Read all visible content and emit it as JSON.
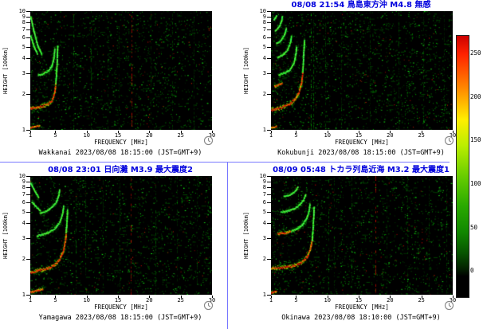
{
  "colors": {
    "title_blue": "#0000dd",
    "divider_blue": "#7777ff",
    "plot_background": "#000000",
    "caption_black": "#000000"
  },
  "chart_data": {
    "type": "heatmap",
    "description": "2x2 grid of ionogram quick-look plots (ionosonde echo intensity vs frequency and virtual height) from four Japanese stations, with earthquake annotations and a signal-intensity colorbar",
    "xlabel": "FREQUENCY [MHz]",
    "ylabel": "HEIGHT [100km]",
    "x_range": [
      1,
      30
    ],
    "y_scale": "log",
    "x_ticks": [
      1,
      5,
      10,
      15,
      20,
      25,
      30
    ],
    "y_ticks": [
      10,
      9,
      8,
      7,
      6,
      5,
      4,
      3,
      2,
      1
    ],
    "colorbar": {
      "ticks": [
        250,
        200,
        150,
        100,
        50,
        0
      ],
      "gradient": [
        [
          "#cc0000",
          0
        ],
        [
          "#ff2200",
          7
        ],
        [
          "#ff8800",
          20
        ],
        [
          "#ffee00",
          32
        ],
        [
          "#bbee00",
          42
        ],
        [
          "#66cc00",
          54
        ],
        [
          "#2aaa00",
          65
        ],
        [
          "#118800",
          75
        ],
        [
          "#075500",
          83
        ],
        [
          "#032200",
          89
        ],
        [
          "#000000",
          92
        ],
        [
          "#000000",
          100
        ]
      ]
    },
    "panels": [
      {
        "station": "Wakkanai",
        "title": "",
        "caption": "Wakkanai 2023/08/08 18:15:00 (JST=GMT+9)",
        "noise": {
          "seed": 7,
          "count": 1500
        },
        "vlines": [
          {
            "f": 17.2,
            "color": "red",
            "alpha": 0.9
          },
          {
            "f": 7.9,
            "color": "green",
            "alpha": 0.4
          },
          {
            "f": 10.7,
            "color": "green",
            "alpha": 0.5
          },
          {
            "f": 13.4,
            "color": "green",
            "alpha": 0.3
          },
          {
            "f": 15.1,
            "color": "green",
            "alpha": 0.25
          },
          {
            "f": 20.2,
            "color": "green",
            "alpha": 0.3
          },
          {
            "f": 23.6,
            "color": "green",
            "alpha": 0.45
          },
          {
            "f": 27.1,
            "color": "green",
            "alpha": 0.3
          }
        ],
        "traces": [
          {
            "hot": true,
            "w": 4,
            "pts": [
              [
                1,
                1.52
              ],
              [
                2,
                1.56
              ],
              [
                3,
                1.6
              ],
              [
                3.8,
                1.66
              ],
              [
                4.4,
                1.78
              ],
              [
                4.8,
                2.05
              ],
              [
                5.0,
                2.5
              ]
            ]
          },
          {
            "hot": false,
            "w": 2.4,
            "pts": [
              [
                5.0,
                2.5
              ],
              [
                5.15,
                3.3
              ],
              [
                5.25,
                4.3
              ],
              [
                5.3,
                5.2
              ]
            ]
          },
          {
            "hot": false,
            "w": 2.4,
            "pts": [
              [
                2.2,
                2.9
              ],
              [
                3.0,
                3.0
              ],
              [
                3.8,
                3.15
              ],
              [
                4.4,
                3.5
              ],
              [
                4.7,
                4.1
              ],
              [
                4.85,
                4.9
              ]
            ]
          },
          {
            "hot": false,
            "w": 2.0,
            "pts": [
              [
                1.0,
                9.0
              ],
              [
                1.5,
                6.8
              ],
              [
                2.1,
                5.2
              ],
              [
                2.8,
                4.3
              ]
            ]
          },
          {
            "hot": false,
            "w": 1.7,
            "pts": [
              [
                1.0,
                6.2
              ],
              [
                1.5,
                5.1
              ],
              [
                2.1,
                4.35
              ]
            ]
          },
          {
            "hot": true,
            "w": 2.2,
            "pts": [
              [
                1,
                1.05
              ],
              [
                1.8,
                1.07
              ],
              [
                2.5,
                1.1
              ]
            ]
          }
        ]
      },
      {
        "station": "Kokubunji",
        "title": "08/08 21:54 鳥島東方沖 M4.8 無感",
        "caption": "Kokubunji 2023/08/08 18:15:00 (JST=GMT+9)",
        "noise": {
          "seed": 21,
          "count": 1700
        },
        "vlines": [
          {
            "f": 7.3,
            "color": "green",
            "alpha": 0.7
          },
          {
            "f": 7.8,
            "color": "green",
            "alpha": 0.5
          },
          {
            "f": 9.6,
            "color": "green",
            "alpha": 0.35
          },
          {
            "f": 12.2,
            "color": "green",
            "alpha": 0.3
          },
          {
            "f": 16.8,
            "color": "green",
            "alpha": 0.3
          },
          {
            "f": 21.4,
            "color": "green",
            "alpha": 0.35
          },
          {
            "f": 25.3,
            "color": "green",
            "alpha": 0.3
          },
          {
            "f": 28.6,
            "color": "green",
            "alpha": 0.25
          }
        ],
        "traces": [
          {
            "hot": true,
            "w": 4,
            "pts": [
              [
                1,
                1.48
              ],
              [
                2,
                1.52
              ],
              [
                3,
                1.58
              ],
              [
                4,
                1.68
              ],
              [
                4.8,
                1.85
              ],
              [
                5.4,
                2.1
              ],
              [
                5.8,
                2.5
              ],
              [
                6.0,
                3.1
              ]
            ]
          },
          {
            "hot": false,
            "w": 2.2,
            "pts": [
              [
                6.0,
                3.1
              ],
              [
                6.1,
                4.0
              ],
              [
                6.2,
                5.0
              ],
              [
                6.25,
                5.8
              ]
            ]
          },
          {
            "hot": true,
            "w": 3.4,
            "pts": [
              [
                1.5,
                2.35
              ],
              [
                2.2,
                2.42
              ],
              [
                2.8,
                2.5
              ]
            ]
          },
          {
            "hot": false,
            "w": 2.5,
            "pts": [
              [
                2.2,
                2.95
              ],
              [
                3.2,
                3.05
              ],
              [
                4.0,
                3.25
              ],
              [
                4.6,
                3.7
              ],
              [
                4.9,
                4.4
              ],
              [
                5.0,
                5.1
              ]
            ]
          },
          {
            "hot": false,
            "w": 2.2,
            "pts": [
              [
                2.0,
                4.1
              ],
              [
                2.8,
                4.3
              ],
              [
                3.5,
                4.7
              ],
              [
                4.0,
                5.4
              ],
              [
                4.2,
                6.2
              ]
            ]
          },
          {
            "hot": false,
            "w": 2.0,
            "pts": [
              [
                1.8,
                5.4
              ],
              [
                2.5,
                5.7
              ],
              [
                3.1,
                6.4
              ],
              [
                3.4,
                7.3
              ]
            ]
          },
          {
            "hot": false,
            "w": 1.8,
            "pts": [
              [
                1.6,
                6.9
              ],
              [
                2.2,
                7.4
              ],
              [
                2.6,
                8.3
              ],
              [
                2.75,
                9.2
              ]
            ]
          },
          {
            "hot": false,
            "w": 1.5,
            "pts": [
              [
                1.4,
                8.5
              ],
              [
                1.9,
                9.3
              ]
            ]
          },
          {
            "hot": true,
            "w": 2.2,
            "pts": [
              [
                1,
                1.05
              ],
              [
                1.9,
                1.08
              ]
            ]
          }
        ]
      },
      {
        "station": "Yamagawa",
        "title": "08/08 23:01 日向灘 M3.9 最大震度2",
        "caption": "Yamagawa 2023/08/08 18:15:00 (JST=GMT+9)",
        "noise": {
          "seed": 33,
          "count": 1500
        },
        "vlines": [
          {
            "f": 17.0,
            "color": "red",
            "alpha": 0.85
          },
          {
            "f": 8.3,
            "color": "green",
            "alpha": 0.35
          },
          {
            "f": 9.8,
            "color": "green",
            "alpha": 0.4
          },
          {
            "f": 12.6,
            "color": "green",
            "alpha": 0.3
          },
          {
            "f": 15.2,
            "color": "green",
            "alpha": 0.3
          },
          {
            "f": 21.0,
            "color": "green",
            "alpha": 0.4
          },
          {
            "f": 24.4,
            "color": "green",
            "alpha": 0.3
          },
          {
            "f": 27.6,
            "color": "green",
            "alpha": 0.25
          }
        ],
        "traces": [
          {
            "hot": true,
            "w": 4,
            "pts": [
              [
                1,
                1.55
              ],
              [
                2,
                1.6
              ],
              [
                3,
                1.64
              ],
              [
                4,
                1.7
              ],
              [
                4.8,
                1.8
              ],
              [
                5.6,
                2.0
              ],
              [
                6.2,
                2.35
              ],
              [
                6.55,
                2.9
              ],
              [
                6.7,
                3.6
              ]
            ]
          },
          {
            "hot": false,
            "w": 2.2,
            "pts": [
              [
                6.65,
                3.4
              ],
              [
                6.8,
                4.4
              ],
              [
                6.85,
                5.3
              ]
            ]
          },
          {
            "hot": false,
            "w": 2.5,
            "pts": [
              [
                2.0,
                3.15
              ],
              [
                3.0,
                3.25
              ],
              [
                4.0,
                3.4
              ],
              [
                5.0,
                3.7
              ],
              [
                5.7,
                4.2
              ],
              [
                6.1,
                4.9
              ],
              [
                6.25,
                5.7
              ]
            ]
          },
          {
            "hot": false,
            "w": 2.0,
            "pts": [
              [
                2.5,
                4.9
              ],
              [
                3.5,
                5.1
              ],
              [
                4.4,
                5.5
              ],
              [
                5.1,
                6.1
              ],
              [
                5.5,
                7.0
              ],
              [
                5.6,
                7.8
              ]
            ]
          },
          {
            "hot": false,
            "w": 1.8,
            "pts": [
              [
                1.0,
                8.8
              ],
              [
                1.6,
                7.6
              ],
              [
                2.3,
                6.6
              ]
            ]
          },
          {
            "hot": false,
            "w": 1.6,
            "pts": [
              [
                1.2,
                6.1
              ],
              [
                1.9,
                5.5
              ],
              [
                2.6,
                5.1
              ]
            ]
          },
          {
            "hot": true,
            "w": 2.2,
            "pts": [
              [
                1,
                1.06
              ],
              [
                2,
                1.09
              ],
              [
                3,
                1.12
              ]
            ]
          }
        ]
      },
      {
        "station": "Okinawa",
        "title": "08/09 05:48 トカラ列島近海 M3.2 最大震度1",
        "caption": "Okinawa 2023/08/08 18:10:00 (JST=GMT+9)",
        "noise": {
          "seed": 45,
          "count": 1500
        },
        "vlines": [
          {
            "f": 17.6,
            "color": "red",
            "alpha": 0.8
          },
          {
            "f": 10.2,
            "color": "green",
            "alpha": 0.5
          },
          {
            "f": 11.0,
            "color": "green",
            "alpha": 0.3
          },
          {
            "f": 13.8,
            "color": "green",
            "alpha": 0.3
          },
          {
            "f": 19.4,
            "color": "green",
            "alpha": 0.3
          },
          {
            "f": 22.8,
            "color": "green",
            "alpha": 0.35
          },
          {
            "f": 26.2,
            "color": "green",
            "alpha": 0.25
          },
          {
            "f": 29.0,
            "color": "green",
            "alpha": 0.3
          }
        ],
        "traces": [
          {
            "hot": true,
            "w": 4,
            "pts": [
              [
                1,
                1.68
              ],
              [
                2,
                1.7
              ],
              [
                3,
                1.71
              ],
              [
                4,
                1.74
              ],
              [
                5,
                1.8
              ],
              [
                6,
                1.92
              ],
              [
                6.7,
                2.1
              ],
              [
                7.2,
                2.45
              ],
              [
                7.55,
                3.0
              ]
            ]
          },
          {
            "hot": false,
            "w": 2.2,
            "pts": [
              [
                7.5,
                2.9
              ],
              [
                7.65,
                3.8
              ],
              [
                7.75,
                4.8
              ],
              [
                7.8,
                5.6
              ]
            ]
          },
          {
            "hot": true,
            "w": 2.6,
            "pts": [
              [
                2.0,
                3.3
              ],
              [
                3.2,
                3.35
              ],
              [
                4.2,
                3.45
              ]
            ]
          },
          {
            "hot": false,
            "w": 2.4,
            "pts": [
              [
                4.2,
                3.45
              ],
              [
                5.0,
                3.6
              ],
              [
                5.9,
                3.9
              ],
              [
                6.6,
                4.4
              ],
              [
                7.0,
                5.1
              ],
              [
                7.15,
                5.9
              ]
            ]
          },
          {
            "hot": false,
            "w": 2.0,
            "pts": [
              [
                2.5,
                5.0
              ],
              [
                3.5,
                5.1
              ],
              [
                4.5,
                5.3
              ],
              [
                5.4,
                5.7
              ],
              [
                6.1,
                6.3
              ],
              [
                6.5,
                7.1
              ]
            ]
          },
          {
            "hot": false,
            "w": 1.7,
            "pts": [
              [
                3.0,
                6.8
              ],
              [
                4.0,
                7.0
              ],
              [
                4.8,
                7.5
              ],
              [
                5.3,
                8.2
              ]
            ]
          },
          {
            "hot": true,
            "w": 2.2,
            "pts": [
              [
                1,
                1.05
              ],
              [
                1.9,
                1.08
              ]
            ]
          }
        ]
      }
    ]
  }
}
